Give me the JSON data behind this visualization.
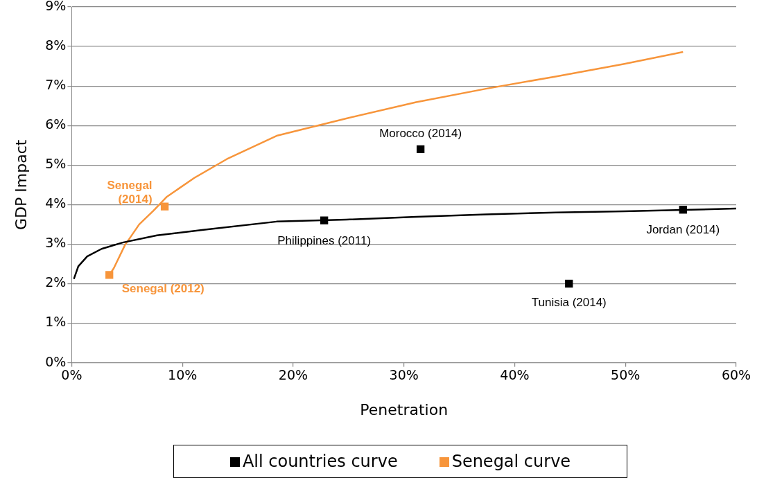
{
  "chart_data": {
    "type": "line",
    "xlabel": "Penetration",
    "ylabel": "GDP Impact",
    "xlim": [
      0,
      60
    ],
    "xticks": [
      {
        "value": 0,
        "label": "0%"
      },
      {
        "value": 10,
        "label": "10%"
      },
      {
        "value": 20,
        "label": "20%"
      },
      {
        "value": 30,
        "label": "30%"
      },
      {
        "value": 40,
        "label": "40%"
      },
      {
        "value": 50,
        "label": "50%"
      },
      {
        "value": 60,
        "label": "60%"
      }
    ],
    "ylim": [
      0,
      9
    ],
    "yticks": [
      {
        "value": 0,
        "label": "0%"
      },
      {
        "value": 1,
        "label": "1%"
      },
      {
        "value": 2,
        "label": "2%"
      },
      {
        "value": 3,
        "label": "3%"
      },
      {
        "value": 4,
        "label": "4%"
      },
      {
        "value": 5,
        "label": "5%"
      },
      {
        "value": 6,
        "label": "6%"
      },
      {
        "value": 7,
        "label": "7%"
      },
      {
        "value": 8,
        "label": "8%"
      },
      {
        "value": 9,
        "label": "9%"
      }
    ],
    "grid": "y",
    "legend": "bottom",
    "series": [
      {
        "name": "All countries curve",
        "marker": "none",
        "color": "#000000",
        "x": [
          0.2,
          0.6,
          1.4,
          2.7,
          4.6,
          7.7,
          11.9,
          18.5,
          24.8,
          31.1,
          37.4,
          43.7,
          49.9,
          60
        ],
        "values": [
          2.12,
          2.44,
          2.69,
          2.88,
          3.04,
          3.22,
          3.36,
          3.57,
          3.62,
          3.69,
          3.75,
          3.8,
          3.83,
          3.9
        ]
      },
      {
        "name": "Senegal curve",
        "marker": "none",
        "color": "#f7953b",
        "x": [
          3.4,
          3.8,
          4.8,
          6.1,
          7.4,
          8.6,
          11.1,
          14,
          18.5,
          24.8,
          31.1,
          37.4,
          43.7,
          49.9,
          55.2
        ],
        "values": [
          2.22,
          2.39,
          2.97,
          3.5,
          3.85,
          4.2,
          4.68,
          5.15,
          5.74,
          6.18,
          6.59,
          6.93,
          7.24,
          7.56,
          7.86
        ]
      },
      {
        "type": "scatter",
        "marker": "square",
        "color": "#000000",
        "x": [
          22.8,
          31.5,
          44.9,
          55.2
        ],
        "values": [
          3.6,
          5.4,
          2.0,
          3.87
        ]
      },
      {
        "type": "scatter",
        "marker": "square",
        "color": "#f7953b",
        "x": [
          3.4,
          8.4
        ],
        "values": [
          2.22,
          3.95
        ]
      }
    ],
    "annotations": [
      {
        "text": "Morocco (2014)",
        "x": 31.5,
        "y": 5.4
      },
      {
        "text": "Philippines (2011)",
        "x": 22.8,
        "y": 3.6
      },
      {
        "text": "Jordan (2014)",
        "x": 55.2,
        "y": 3.87
      },
      {
        "text": "Tunisia (2014)",
        "x": 44.9,
        "y": 2.0
      },
      {
        "text": "Senegal\n(2014)",
        "x": 8.4,
        "y": 3.95
      },
      {
        "text": "Senegal (2012)",
        "x": 3.4,
        "y": 2.22
      }
    ]
  }
}
